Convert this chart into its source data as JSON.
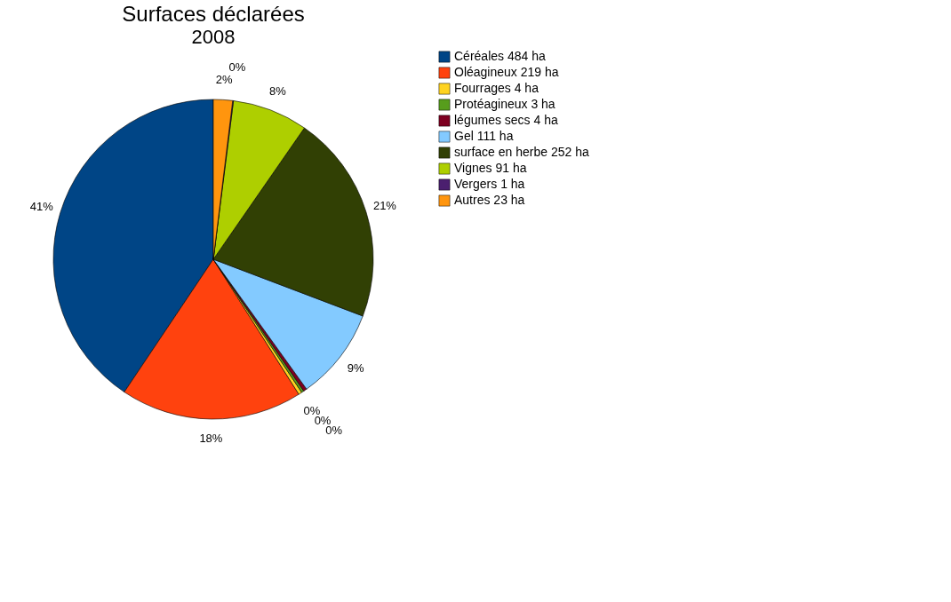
{
  "chart_data": {
    "type": "pie",
    "title": "Surfaces déclarées",
    "subtitle": "2008",
    "categories": [
      "Céréales 484 ha",
      "Oléagineux 219 ha",
      "Fourrages 4 ha",
      "Protéagineux 3 ha",
      "légumes secs 4 ha",
      "Gel 111 ha",
      "surface en herbe 252 ha",
      "Vignes 91 ha",
      "Vergers 1 ha",
      "Autres 23 ha"
    ],
    "values": [
      40.61,
      18.37,
      0.34,
      0.25,
      0.34,
      9.31,
      21.14,
      7.63,
      0.08,
      1.93
    ],
    "colors": [
      "#004586",
      "#ff420e",
      "#ffd320",
      "#579d1c",
      "#7e0021",
      "#83caff",
      "#314004",
      "#aecf00",
      "#4b1f6f",
      "#ff950e"
    ],
    "value_labels": [
      "41%",
      "18%",
      "0%",
      "0%",
      "0%",
      "9%",
      "21%",
      "8%",
      "0%",
      "2%"
    ],
    "legend": "right"
  }
}
